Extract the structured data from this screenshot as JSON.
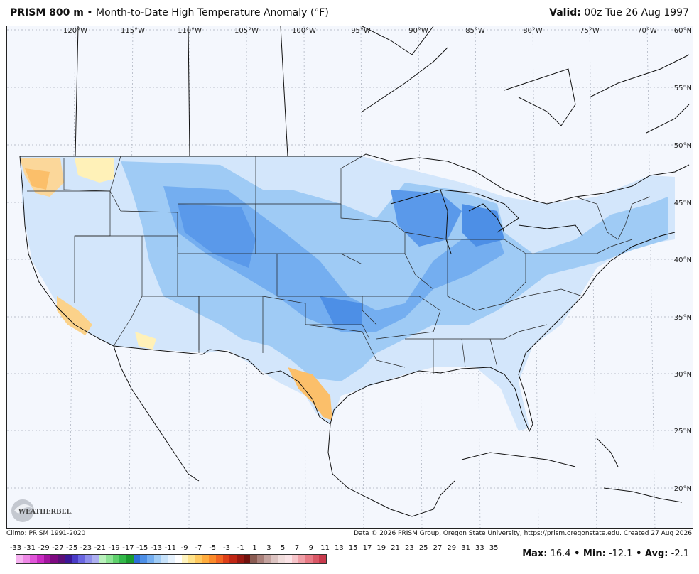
{
  "header": {
    "title_bold": "PRISM 800 m",
    "title_rest": " • Month-to-Date High Temperature Anomaly (°F)",
    "valid_label": "Valid:",
    "valid_value": " 00z Tue 26 Aug 1997"
  },
  "map": {
    "lon_labels": [
      "120°W",
      "115°W",
      "110°W",
      "105°W",
      "100°W",
      "95°W",
      "90°W",
      "85°W",
      "80°W",
      "75°W",
      "70°W"
    ],
    "lat_labels": [
      "60°N",
      "55°N",
      "50°N",
      "45°N",
      "40°N",
      "35°N",
      "30°N",
      "25°N",
      "20°N"
    ]
  },
  "footer": {
    "climo": "Climo: PRISM 1991-2020",
    "credit": "Data © 2026 PRISM Group, Oregon State University, https://prism.oregonstate.edu. Created 27 Aug 2026",
    "logo_text": "WEATHERBELL"
  },
  "legend": {
    "labels": [
      "-33",
      "-31",
      "-29",
      "-27",
      "-25",
      "-23",
      "-21",
      "-19",
      "-17",
      "-15",
      "-13",
      "-11",
      "-9",
      "-7",
      "-5",
      "-3",
      "-1",
      "1",
      "3",
      "5",
      "7",
      "9",
      "11",
      "13",
      "15",
      "17",
      "19",
      "21",
      "23",
      "25",
      "27",
      "29",
      "31",
      "33",
      "35"
    ],
    "colors": [
      "#f6b3f1",
      "#ee88e6",
      "#e055d8",
      "#c92bc1",
      "#a3159f",
      "#7e0a81",
      "#5c0f78",
      "#3b1796",
      "#4a3bc6",
      "#6a66e1",
      "#8f8feb",
      "#adaff0",
      "#b9f1bc",
      "#8ee495",
      "#5fd06c",
      "#33b84a",
      "#1a9a2e",
      "#2f6fd9",
      "#4d8fe6",
      "#74aef0",
      "#9fcbf5",
      "#c7e2fa",
      "#e6f2fd",
      "#ffffff",
      "#fff4bf",
      "#ffe38a",
      "#ffc95f",
      "#ffac3d",
      "#fb8a2a",
      "#f26522",
      "#dd3f18",
      "#c02614",
      "#981811",
      "#70110d",
      "#8a5b52",
      "#a9807a",
      "#c3a29e",
      "#dcc3c1",
      "#f0dcdb",
      "#fae3e6",
      "#f6c4c9",
      "#ef9ea6",
      "#e77a85",
      "#d95766",
      "#c83a4c"
    ]
  },
  "stats": {
    "max_label": "Max:",
    "max_value": " 16.4",
    "min_label": " • Min:",
    "min_value": " -12.1",
    "avg_label": " • Avg:",
    "avg_value": " -2.1"
  }
}
